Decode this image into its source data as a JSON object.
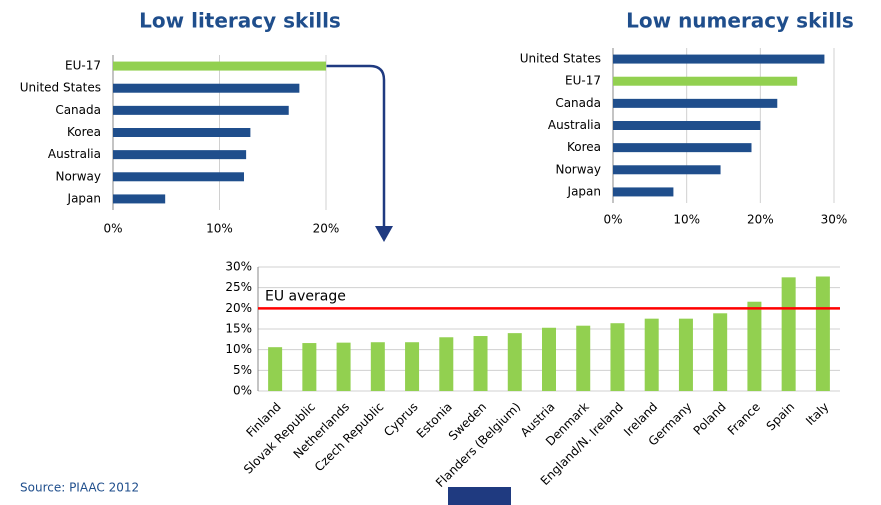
{
  "chart_data": [
    {
      "type": "hbar",
      "title": "Low literacy skills",
      "categories": [
        "EU-17",
        "United States",
        "Canada",
        "Korea",
        "Australia",
        "Norway",
        "Japan"
      ],
      "values": [
        20,
        17.5,
        16.5,
        12.9,
        12.5,
        12.3,
        4.9
      ],
      "colors": [
        "#92d050",
        "#1f4e8c",
        "#1f4e8c",
        "#1f4e8c",
        "#1f4e8c",
        "#1f4e8c",
        "#1f4e8c"
      ],
      "xlim": [
        0,
        20
      ],
      "xticks": [
        {
          "value": 0,
          "label": "0%"
        },
        {
          "value": 10,
          "label": "10%"
        },
        {
          "value": 20,
          "label": "20%"
        }
      ],
      "grid": true
    },
    {
      "type": "hbar",
      "title": "Low numeracy skills",
      "categories": [
        "United States",
        "EU-17",
        "Canada",
        "Australia",
        "Korea",
        "Norway",
        "Japan"
      ],
      "values": [
        28.7,
        25,
        22.3,
        20,
        18.8,
        14.6,
        8.2
      ],
      "colors": [
        "#1f4e8c",
        "#92d050",
        "#1f4e8c",
        "#1f4e8c",
        "#1f4e8c",
        "#1f4e8c",
        "#1f4e8c"
      ],
      "xlim": [
        0,
        30
      ],
      "xticks": [
        {
          "value": 0,
          "label": "0%"
        },
        {
          "value": 10,
          "label": "10%"
        },
        {
          "value": 20,
          "label": "20%"
        },
        {
          "value": 30,
          "label": "30%"
        }
      ],
      "grid": true
    },
    {
      "type": "bar",
      "categories": [
        "Finland",
        "Slovak Republic",
        "Netherlands",
        "Czech Republic",
        "Cyprus",
        "Estonia",
        "Sweden",
        "Flanders (Belgium)",
        "Austria",
        "Denmark",
        "England/N. Ireland",
        "Ireland",
        "Germany",
        "Poland",
        "France",
        "Spain",
        "Italy"
      ],
      "values": [
        10.6,
        11.6,
        11.7,
        11.8,
        11.8,
        13.0,
        13.3,
        14.0,
        15.3,
        15.8,
        16.4,
        17.5,
        17.5,
        18.8,
        21.6,
        27.5,
        27.7
      ],
      "color": "#92d050",
      "ylim": [
        0,
        30
      ],
      "yticks": [
        {
          "value": 0,
          "label": "0%"
        },
        {
          "value": 5,
          "label": "5%"
        },
        {
          "value": 10,
          "label": "10%"
        },
        {
          "value": 15,
          "label": "15%"
        },
        {
          "value": 20,
          "label": "20%"
        },
        {
          "value": 25,
          "label": "25%"
        },
        {
          "value": 30,
          "label": "30%"
        }
      ],
      "grid": true,
      "reference_line": {
        "label": "EU average",
        "value": 20,
        "color": "#ff0000"
      }
    }
  ],
  "source": "Source: PIAAC 2012"
}
